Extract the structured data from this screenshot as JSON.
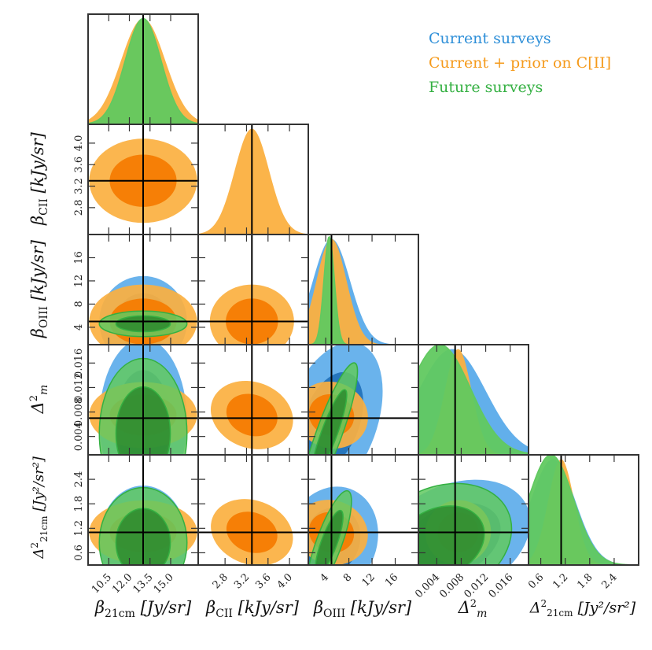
{
  "legend": {
    "items": [
      {
        "label": "Current surveys",
        "color": "#2e8fd8"
      },
      {
        "label": "Current + prior on C[II]",
        "color": "#f59a1b"
      },
      {
        "label": "Future surveys",
        "color": "#34b042"
      }
    ]
  },
  "chart_data": {
    "type": "corner",
    "parameters": [
      {
        "key": "b21",
        "label": "β21cm [Jy/sr]",
        "range": [
          9.0,
          17.0
        ],
        "ticks": [
          "10.5",
          "12.0",
          "13.5",
          "15.0"
        ],
        "tick_values": [
          10.5,
          12.0,
          13.5,
          15.0
        ],
        "truth": 13.0
      },
      {
        "key": "bCII",
        "label": "βCII [kJy/sr]",
        "range": [
          2.3,
          4.35
        ],
        "ticks": [
          "2.8",
          "3.2",
          "3.6",
          "4.0"
        ],
        "tick_values": [
          2.8,
          3.2,
          3.6,
          4.0
        ],
        "truth": 3.3
      },
      {
        "key": "bOIII",
        "label": "βOIII [kJy/sr]",
        "range": [
          1.0,
          20.0
        ],
        "ticks": [
          "4",
          "8",
          "12",
          "16"
        ],
        "tick_values": [
          4,
          8,
          12,
          16
        ],
        "truth": 5.0
      },
      {
        "key": "D2m",
        "label": "Δ²m",
        "range": [
          0.001,
          0.019
        ],
        "ticks": [
          "0.004",
          "0.008",
          "0.012",
          "0.016"
        ],
        "tick_values": [
          0.004,
          0.008,
          0.012,
          0.016
        ],
        "truth": 0.007
      },
      {
        "key": "D2_21",
        "label": "Δ²21cm [Jy²/sr²]",
        "range": [
          0.3,
          3.0
        ],
        "ticks": [
          "0.6",
          "1.2",
          "1.8",
          "2.4"
        ],
        "tick_values": [
          0.6,
          1.2,
          1.8,
          2.4
        ],
        "truth": 1.1
      }
    ],
    "series": [
      {
        "name": "Current surveys",
        "color": "#2e8fd8",
        "means": [
          13.0,
          null,
          5.0,
          0.0065,
          0.9
        ],
        "sigmas": [
          1.3,
          null,
          3.2,
          0.0055,
          0.55
        ]
      },
      {
        "name": "Current + prior on C[II]",
        "color": "#f59a1b",
        "means": [
          13.0,
          3.3,
          5.0,
          0.0075,
          1.1
        ],
        "sigmas": [
          1.6,
          0.32,
          2.6,
          0.0022,
          0.32
        ]
      },
      {
        "name": "Future surveys",
        "color": "#34b042",
        "means": [
          13.0,
          null,
          4.6,
          0.0045,
          0.85
        ],
        "sigmas": [
          1.3,
          null,
          0.9,
          0.005,
          0.55
        ]
      }
    ],
    "axis_labels": {
      "x": [
        "β21cm [Jy/sr]",
        "βCII [kJy/sr]",
        "βOIII [kJy/sr]",
        "Δ²m",
        "Δ²21cm [Jy²/sr²]"
      ],
      "y": [
        "βCII [kJy/sr]",
        "βOIII [kJy/sr]",
        "Δ²m",
        "Δ²21cm [Jy²/sr²]"
      ]
    }
  }
}
